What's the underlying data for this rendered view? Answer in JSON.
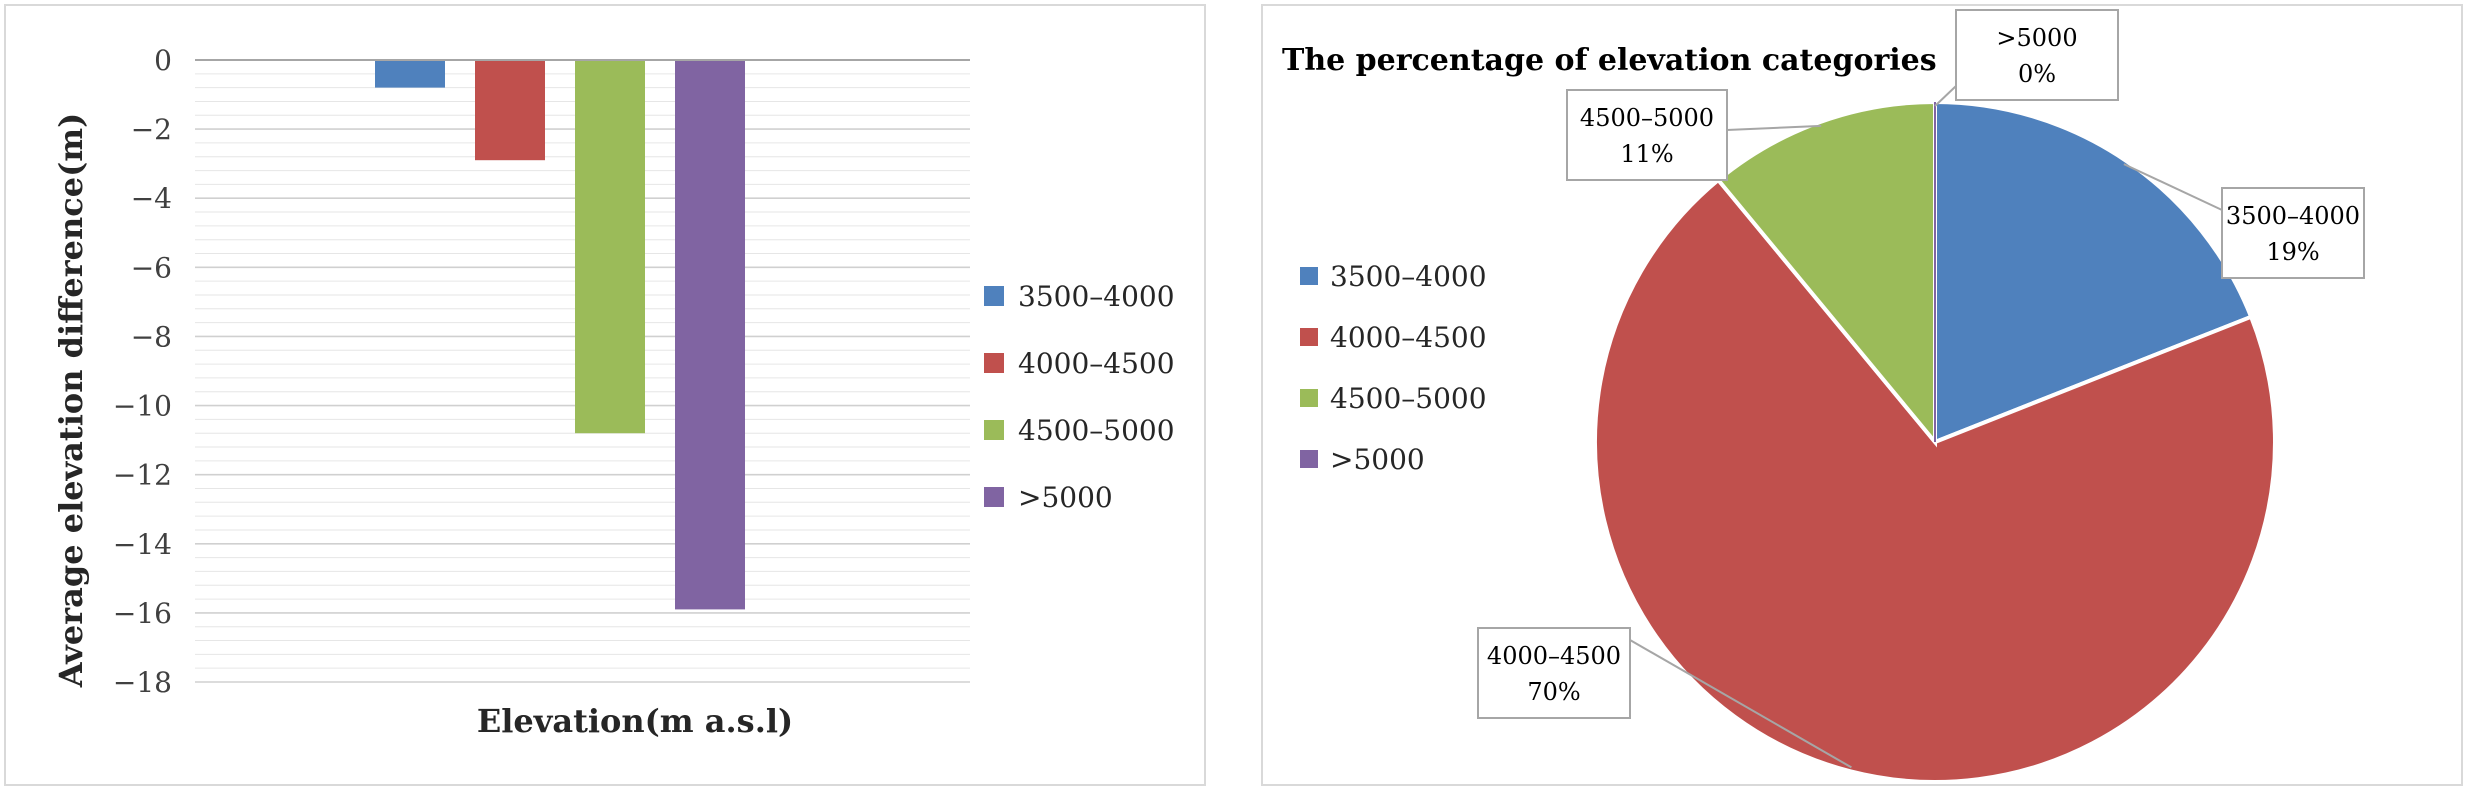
{
  "colors": {
    "c3500": "#4f81bd",
    "c4000": "#c0504d",
    "c4500": "#9bbb59",
    "c5000": "#8064a2"
  },
  "chart_data": [
    {
      "type": "bar",
      "categories": [
        "3500–4000",
        "4000–4500",
        "4500–5000",
        ">5000"
      ],
      "values": [
        -0.8,
        -2.9,
        -10.8,
        -15.9
      ],
      "xlabel": "Elevation(m a.s.l)",
      "ylabel": "Average elevation difference(m)",
      "ylim": [
        -18,
        0
      ],
      "yticks": [
        0,
        -2,
        -4,
        -6,
        -8,
        -10,
        -12,
        -14,
        -16,
        -18
      ],
      "grid": true,
      "legend": {
        "position": "right",
        "entries": [
          "3500–4000",
          "4000–4500",
          "4500–5000",
          ">5000"
        ]
      }
    },
    {
      "type": "pie",
      "title": "The percentage of  elevation categories",
      "slices": [
        {
          "label": "3500–4000",
          "value": 19,
          "pct_label": "19%"
        },
        {
          "label": "4000–4500",
          "value": 70,
          "pct_label": "70%"
        },
        {
          "label": "4500–5000",
          "value": 11,
          "pct_label": "11%"
        },
        {
          "label": ">5000",
          "value": 0,
          "pct_label": "0%"
        }
      ],
      "legend": {
        "position": "left",
        "entries": [
          "3500–4000",
          "4000–4500",
          "4500–5000",
          ">5000"
        ]
      }
    }
  ]
}
